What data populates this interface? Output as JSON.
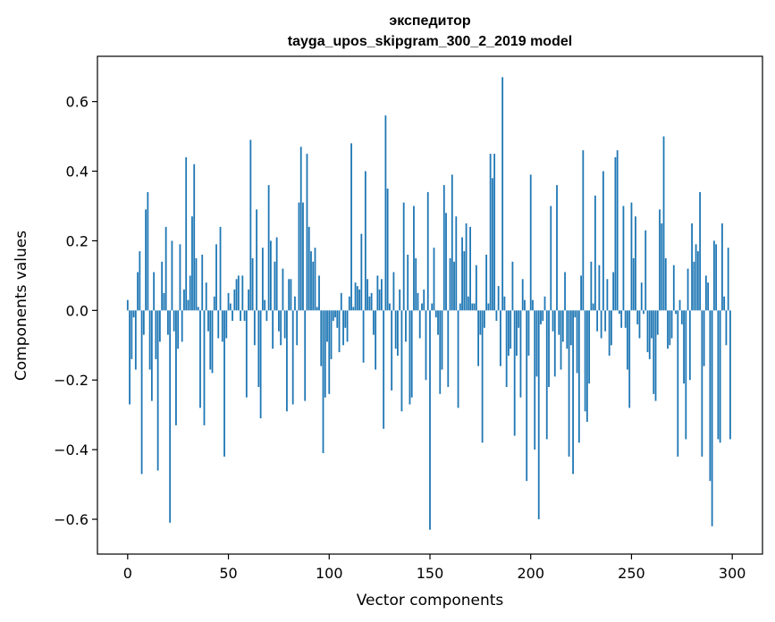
{
  "chart_data": {
    "type": "bar",
    "title": "экспедитор",
    "subtitle": "tayga_upos_skipgram_300_2_2019 model",
    "xlabel": "Vector components",
    "ylabel": "Components values",
    "xlim": [
      -15,
      315
    ],
    "ylim": [
      -0.7,
      0.73
    ],
    "xticks": [
      0,
      50,
      100,
      150,
      200,
      250,
      300
    ],
    "xtick_labels": [
      "0",
      "50",
      "100",
      "150",
      "200",
      "250",
      "300"
    ],
    "yticks": [
      -0.6,
      -0.4,
      -0.2,
      0.0,
      0.2,
      0.4,
      0.6
    ],
    "ytick_labels": [
      "−0.6",
      "−0.4",
      "−0.2",
      "0.0",
      "0.2",
      "0.4",
      "0.6"
    ],
    "grid": false,
    "bar_color": "#1f77b4",
    "series": [
      {
        "name": "components",
        "x_start": 0,
        "values": [
          0.03,
          -0.27,
          -0.14,
          -0.02,
          -0.17,
          0.11,
          0.17,
          -0.47,
          -0.07,
          0.29,
          0.34,
          -0.17,
          -0.26,
          0.11,
          -0.14,
          -0.46,
          -0.09,
          0.14,
          0.05,
          0.24,
          -0.07,
          -0.61,
          0.2,
          -0.06,
          -0.33,
          -0.11,
          0.19,
          -0.09,
          0.06,
          0.44,
          0.03,
          0.1,
          0.27,
          0.42,
          0.15,
          0.01,
          -0.28,
          0.16,
          -0.33,
          0.08,
          -0.06,
          -0.17,
          -0.18,
          0.04,
          0.19,
          -0.08,
          0.24,
          -0.09,
          -0.42,
          -0.08,
          0.05,
          0.02,
          -0.03,
          0.06,
          0.09,
          0.1,
          -0.03,
          0.1,
          -0.03,
          -0.25,
          0.06,
          0.49,
          0.15,
          -0.1,
          0.29,
          -0.22,
          -0.31,
          0.18,
          0.03,
          -0.03,
          0.36,
          0.2,
          -0.11,
          0.14,
          0.21,
          -0.06,
          -0.1,
          0.12,
          -0.08,
          -0.29,
          0.09,
          0.09,
          -0.27,
          0.04,
          -0.1,
          0.31,
          0.47,
          0.31,
          -0.26,
          0.45,
          0.24,
          0.17,
          0.14,
          0.18,
          0.01,
          0.1,
          -0.16,
          -0.41,
          -0.25,
          -0.09,
          -0.24,
          -0.14,
          -0.03,
          -0.02,
          -0.05,
          -0.12,
          0.05,
          -0.1,
          -0.05,
          -0.09,
          0.04,
          0.48,
          0.01,
          0.08,
          0.07,
          0.06,
          0.22,
          -0.15,
          0.4,
          0.09,
          0.04,
          0.05,
          -0.07,
          -0.17,
          0.1,
          0.06,
          0.09,
          -0.34,
          0.56,
          0.35,
          0.02,
          -0.23,
          0.11,
          -0.11,
          -0.13,
          0.06,
          -0.29,
          0.31,
          -0.09,
          0.16,
          -0.27,
          -0.25,
          0.3,
          0.15,
          0.05,
          -0.08,
          0.02,
          0.06,
          -0.2,
          0.34,
          -0.63,
          0.02,
          0.18,
          -0.02,
          -0.07,
          -0.24,
          -0.17,
          0.36,
          0.28,
          -0.22,
          0.15,
          0.39,
          0.14,
          0.27,
          -0.28,
          0.02,
          0.21,
          0.17,
          0.25,
          0.04,
          0.24,
          0.02,
          0.02,
          0.13,
          -0.16,
          -0.07,
          -0.38,
          -0.05,
          0.16,
          0.02,
          0.45,
          0.38,
          0.45,
          -0.03,
          0.07,
          -0.16,
          0.67,
          0.04,
          -0.22,
          -0.13,
          -0.11,
          0.14,
          -0.36,
          -0.13,
          -0.05,
          -0.25,
          0.09,
          0.03,
          -0.49,
          -0.13,
          0.39,
          0.03,
          -0.4,
          -0.19,
          -0.6,
          -0.04,
          -0.03,
          0.04,
          -0.37,
          -0.22,
          0.3,
          -0.06,
          -0.19,
          0.36,
          -0.07,
          -0.17,
          -0.09,
          0.11,
          -0.11,
          -0.42,
          -0.1,
          -0.47,
          -0.02,
          -0.18,
          -0.38,
          0.1,
          0.46,
          -0.29,
          -0.32,
          -0.21,
          0.14,
          0.02,
          0.33,
          -0.06,
          0.13,
          -0.08,
          0.4,
          -0.06,
          0.09,
          -0.13,
          -0.1,
          0.11,
          0.44,
          0.46,
          -0.01,
          -0.05,
          0.3,
          -0.05,
          -0.17,
          -0.28,
          0.31,
          0.15,
          0.27,
          -0.04,
          -0.08,
          0.08,
          -0.01,
          0.23,
          -0.12,
          -0.14,
          -0.08,
          -0.24,
          -0.26,
          -0.07,
          0.29,
          0.25,
          0.5,
          0.15,
          -0.11,
          -0.1,
          -0.08,
          0.13,
          -0.01,
          -0.42,
          0.03,
          -0.04,
          -0.21,
          -0.37,
          0.12,
          -0.2,
          0.25,
          0.14,
          0.19,
          0.17,
          0.34,
          -0.42,
          -0.16,
          0.1,
          0.08,
          -0.49,
          -0.62,
          0.2,
          0.19,
          -0.37,
          -0.38,
          0.25,
          0.04,
          -0.1,
          0.18,
          -0.37
        ]
      }
    ]
  }
}
